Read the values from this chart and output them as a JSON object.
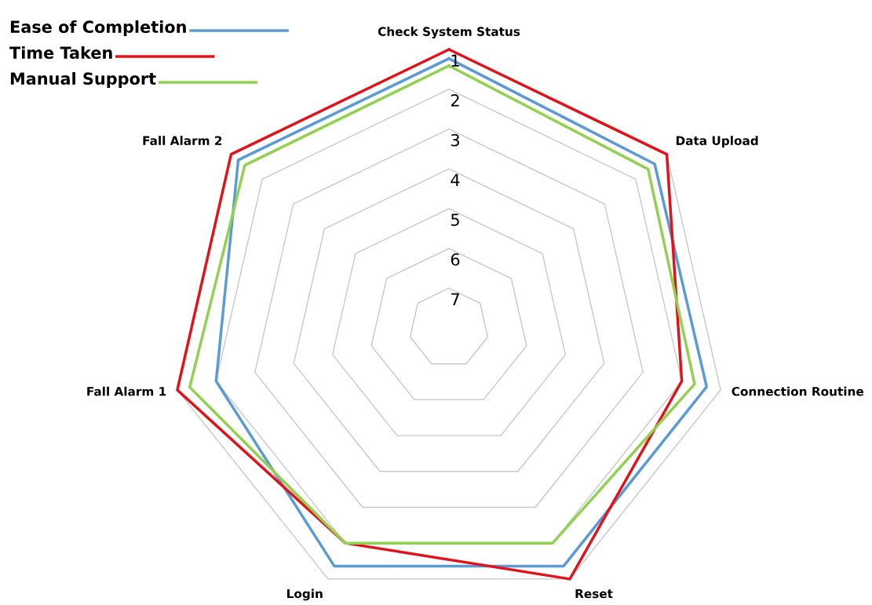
{
  "chart_data": {
    "type": "radar",
    "categories": [
      "Check System Status",
      "Data Upload",
      "Connection Routine",
      "Reset",
      "Login",
      "Fall Alarm 1",
      "Fall Alarm 2"
    ],
    "series": [
      {
        "name": "Ease of Completion",
        "color": "#5b9bd5",
        "values": [
          1.23,
          1.39,
          1.36,
          1.36,
          1.36,
          2,
          1.23
        ]
      },
      {
        "name": "Time Taken",
        "color": "#e0131a",
        "values": [
          1,
          1,
          2,
          1,
          2,
          1,
          1
        ]
      },
      {
        "name": "Manual Support",
        "color": "#92d050",
        "values": [
          1.41,
          1.6,
          1.67,
          2,
          2,
          1.32,
          1.44
        ]
      }
    ],
    "ylim": [
      8,
      1
    ],
    "yticks": [
      1,
      2,
      3,
      4,
      5,
      6,
      7
    ],
    "grid": true,
    "legend": "top left",
    "marker": "none",
    "line_style": "solid"
  }
}
